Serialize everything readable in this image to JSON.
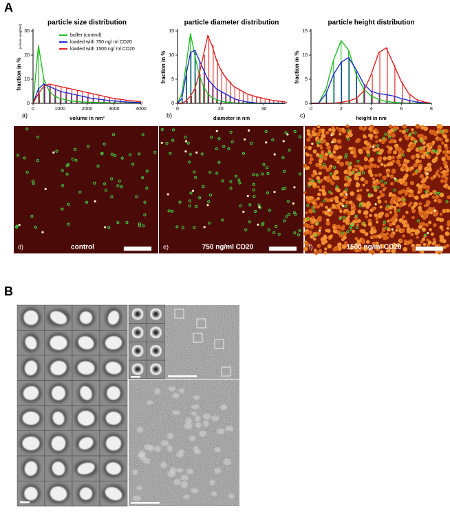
{
  "panel_labels": [
    "A",
    "B"
  ],
  "chart_data": [
    {
      "type": "histogram-line",
      "title": "particle size distribution",
      "panel": "a)",
      "x_label": "volume in nm³",
      "y_label": "fraction in %",
      "y_label_note": "(volume weighted)",
      "x": [
        0,
        200,
        400,
        600,
        800,
        1000,
        1200,
        1400,
        1600,
        1800,
        2000,
        2200,
        2400,
        2600,
        2800,
        3000,
        3200,
        3400,
        3600,
        3800,
        4000
      ],
      "xlim": [
        0,
        4000
      ],
      "xticks": [
        0,
        1000,
        2000,
        3000,
        4000
      ],
      "ylim": [
        0,
        30
      ],
      "yticks": [
        0,
        10,
        20,
        30
      ],
      "legend": "top-right",
      "series": [
        {
          "name": "buffer (control)",
          "color": "#22c022",
          "values": [
            0,
            24,
            10,
            5,
            3,
            2,
            1.5,
            1,
            0.8,
            0.6,
            0.5,
            0.4,
            0.3,
            0.3,
            0.2,
            0.2,
            0.1,
            0.1,
            0.1,
            0.1,
            0
          ]
        },
        {
          "name": "loaded with 750 ng/ ml CD20",
          "color": "#1f2fd0",
          "values": [
            0,
            6,
            8,
            7,
            6,
            5,
            4.5,
            4,
            3.5,
            3,
            2.5,
            2,
            1.8,
            1.5,
            1.2,
            1,
            0.8,
            0.6,
            0.5,
            0.4,
            0.3
          ]
        },
        {
          "name": "loaded with 1500 ng/ ml CD20",
          "color": "#e02020",
          "values": [
            0,
            4,
            7,
            8,
            7.5,
            7,
            6.5,
            6,
            5.5,
            5,
            4.5,
            4,
            3.5,
            3,
            2.5,
            2,
            1.7,
            1.4,
            1.1,
            0.9,
            0.7
          ]
        }
      ]
    },
    {
      "type": "histogram-line",
      "title": "particle diameter distribution",
      "panel": "b)",
      "x_label": "diameter in nm",
      "y_label": "fraction in %",
      "x": [
        0,
        2,
        4,
        6,
        8,
        10,
        12,
        14,
        16,
        18,
        20,
        22,
        24,
        26,
        28,
        30,
        32,
        34,
        36,
        38,
        40,
        42,
        44,
        46,
        48,
        50
      ],
      "xlim": [
        0,
        50
      ],
      "xticks": [
        0,
        20,
        40
      ],
      "ylim": [
        0,
        15
      ],
      "yticks": [
        0,
        5,
        10,
        15
      ],
      "series": [
        {
          "color": "#22c022",
          "values": [
            0,
            2,
            8,
            14.5,
            10,
            6,
            3.5,
            2,
            1.2,
            0.8,
            0.5,
            0.3,
            0.2,
            0.1,
            0,
            0,
            0,
            0,
            0,
            0,
            0,
            0,
            0,
            0,
            0,
            0
          ]
        },
        {
          "color": "#1f2fd0",
          "values": [
            0,
            1,
            6,
            10.5,
            11,
            9,
            7,
            5,
            4,
            3,
            2.5,
            2,
            1.5,
            1,
            0.7,
            0.5,
            0.3,
            0.2,
            0.1,
            0,
            0,
            0,
            0,
            0,
            0,
            0
          ]
        },
        {
          "color": "#e02020",
          "values": [
            0,
            0,
            0.5,
            1.5,
            3,
            6,
            10,
            14,
            12,
            9,
            7,
            5.5,
            4.5,
            3.5,
            3,
            2.5,
            2,
            1.7,
            1.4,
            1.2,
            1,
            0.8,
            0.6,
            0.5,
            0.4,
            0.3
          ]
        }
      ]
    },
    {
      "type": "histogram-line",
      "title": "particle height distribution",
      "panel": "c)",
      "x_label": "height in nm",
      "y_label": "fraction in %",
      "x": [
        0,
        0.5,
        1,
        1.5,
        2,
        2.5,
        3,
        3.5,
        4,
        4.5,
        5,
        5.5,
        6,
        6.5,
        7,
        7.5,
        8
      ],
      "xlim": [
        0,
        8
      ],
      "xticks": [
        0,
        2,
        4,
        6,
        8
      ],
      "ylim": [
        0,
        15
      ],
      "yticks": [
        0,
        5,
        10,
        15
      ],
      "series": [
        {
          "color": "#22c022",
          "values": [
            0,
            0,
            3,
            9,
            13,
            11,
            6,
            3,
            1.5,
            0.8,
            0.4,
            0.2,
            0.1,
            0,
            0,
            0,
            0
          ]
        },
        {
          "color": "#1f2fd0",
          "values": [
            0,
            0,
            2,
            6,
            8.5,
            9.5,
            7,
            4,
            2.5,
            2,
            1.8,
            1.5,
            1,
            0.6,
            0.3,
            0.1,
            0
          ]
        },
        {
          "color": "#e02020",
          "values": [
            0,
            0,
            0,
            0,
            0.2,
            0.5,
            1,
            2.5,
            6,
            10.5,
            11.5,
            8,
            4.5,
            2,
            0.8,
            0.3,
            0
          ]
        }
      ]
    }
  ],
  "images": [
    {
      "letter": "d)",
      "label": "control"
    },
    {
      "letter": "e)",
      "label": "750 ng/ml CD20"
    },
    {
      "letter": "f)",
      "label": "1500 ng/ml CD20"
    }
  ]
}
